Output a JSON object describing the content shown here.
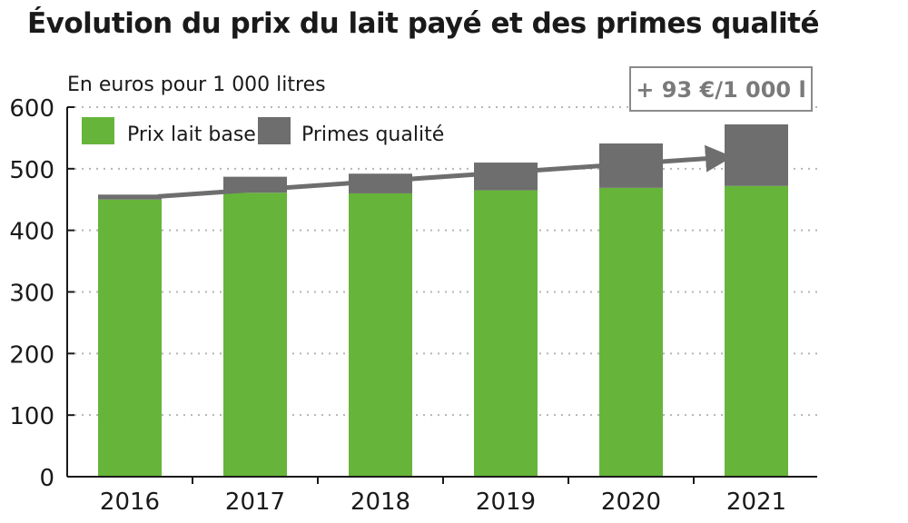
{
  "title": "Évolution du prix du lait payé et des primes qualité",
  "chart_data": {
    "type": "bar",
    "stacked": true,
    "unit_label": "En euros pour 1 000 litres",
    "annotation": "+ 93 €/1 000 l",
    "categories": [
      "2016",
      "2017",
      "2018",
      "2019",
      "2020",
      "2021"
    ],
    "series": [
      {
        "name": "Prix lait base",
        "values": [
          450,
          461,
          460,
          465,
          469,
          472
        ],
        "color": "#66b53a"
      },
      {
        "name": "Primes qualité",
        "values": [
          8,
          26,
          32,
          45,
          72,
          100
        ],
        "color": "#6e6e6e"
      }
    ],
    "ylim": [
      0,
      600
    ],
    "yticks": [
      0,
      100,
      200,
      300,
      400,
      500,
      600
    ],
    "grid": "dotted horizontal",
    "legend": "top-left",
    "trend_arrow": {
      "from_category": "2016",
      "to_category": "2021",
      "from_value": 455,
      "to_value": 518
    }
  }
}
